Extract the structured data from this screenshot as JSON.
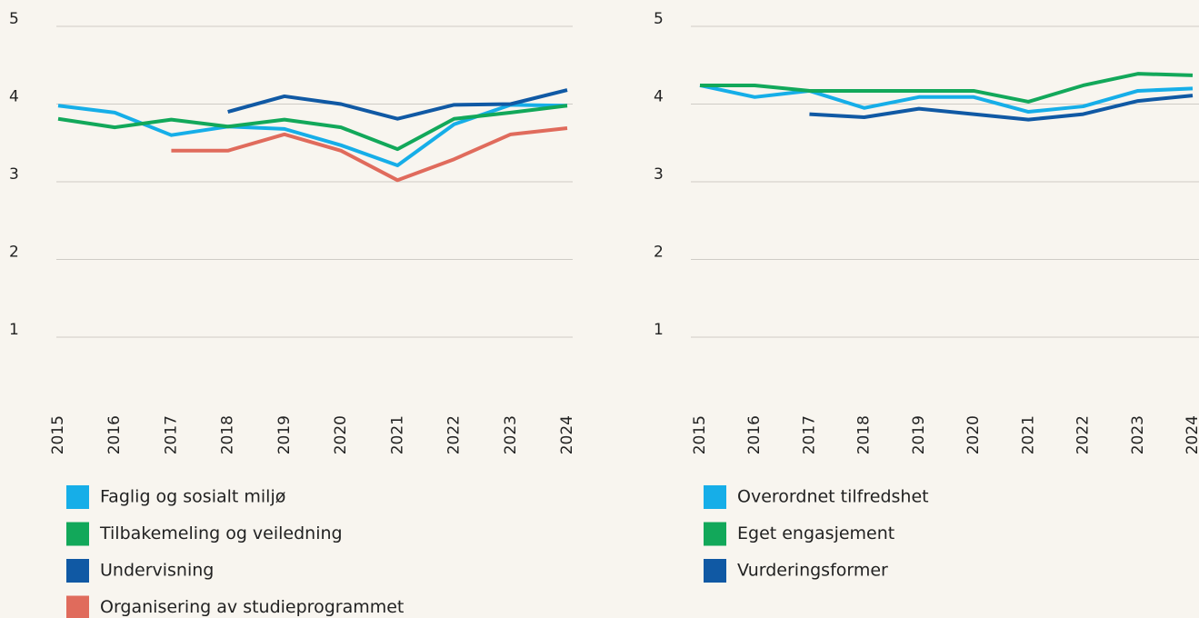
{
  "chart_data": [
    {
      "type": "line",
      "categories": [
        "2015",
        "2016",
        "2017",
        "2018",
        "2019",
        "2020",
        "2021",
        "2022",
        "2023",
        "2024"
      ],
      "ylim": [
        1,
        5
      ],
      "yticks": [
        1,
        2,
        3,
        4,
        5
      ],
      "grid": true,
      "series": [
        {
          "name": "Faglig og sosialt miljø",
          "color": "#16aee8",
          "values": [
            3.98,
            3.89,
            3.6,
            3.71,
            3.68,
            3.47,
            3.21,
            3.74,
            3.99,
            3.98
          ]
        },
        {
          "name": "Tilbakemeling og veiledning",
          "color": "#12a85a",
          "values": [
            3.81,
            3.7,
            3.8,
            3.71,
            3.8,
            3.7,
            3.42,
            3.81,
            3.89,
            3.98
          ]
        },
        {
          "name": "Undervisning",
          "color": "#1059a4",
          "values": [
            null,
            null,
            null,
            3.9,
            4.1,
            4.0,
            3.81,
            3.99,
            4.0,
            4.18
          ]
        },
        {
          "name": "Organisering av studieprogrammet",
          "color": "#e06b5c",
          "values": [
            null,
            null,
            3.4,
            3.4,
            3.61,
            3.4,
            3.02,
            3.29,
            3.61,
            3.69
          ]
        }
      ]
    },
    {
      "type": "line",
      "categories": [
        "2015",
        "2016",
        "2017",
        "2018",
        "2019",
        "2020",
        "2021",
        "2022",
        "2023",
        "2024"
      ],
      "ylim": [
        1,
        5
      ],
      "yticks": [
        1,
        2,
        3,
        4,
        5
      ],
      "grid": true,
      "series": [
        {
          "name": "Overordnet tilfredshet",
          "color": "#16aee8",
          "values": [
            4.24,
            4.09,
            4.17,
            3.95,
            4.09,
            4.09,
            3.9,
            3.97,
            4.17,
            4.2
          ]
        },
        {
          "name": "Eget engasjement",
          "color": "#12a85a",
          "values": [
            4.24,
            4.24,
            4.17,
            4.17,
            4.17,
            4.17,
            4.03,
            4.24,
            4.39,
            4.37
          ]
        },
        {
          "name": "Vurderingsformer",
          "color": "#1059a4",
          "values": [
            null,
            null,
            3.87,
            3.83,
            3.94,
            3.87,
            3.8,
            3.87,
            4.04,
            4.11
          ]
        }
      ]
    }
  ]
}
